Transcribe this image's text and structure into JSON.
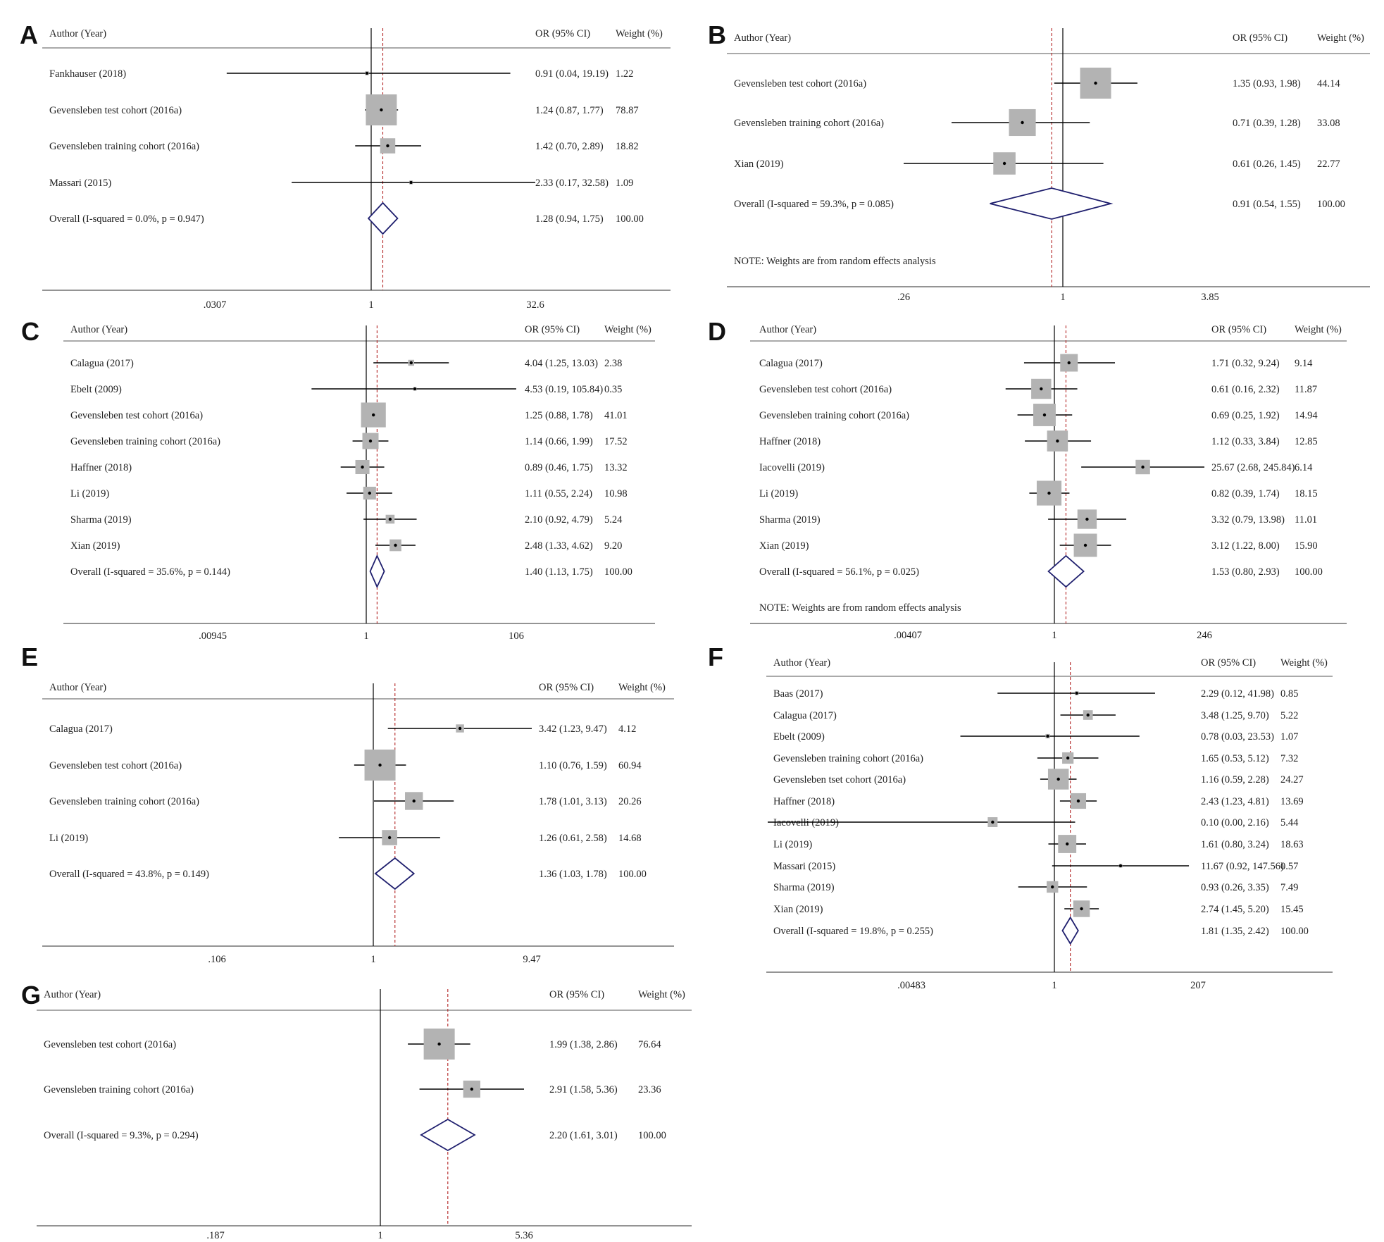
{
  "chart_data": [
    {
      "type": "forest",
      "panel": "A",
      "headers": {
        "label": "Author (Year)",
        "ci": "OR (95% CI)",
        "weight": "Weight (%)"
      },
      "scale": "log",
      "xlim": [
        0.0307,
        32.6
      ],
      "xticks": [
        {
          "value": 0.0307,
          "label": ".0307"
        },
        {
          "value": 1,
          "label": "1"
        },
        {
          "value": 32.6,
          "label": "32.6"
        }
      ],
      "studies": [
        {
          "label": "Fankhauser (2018)",
          "or": 0.91,
          "lo": 0.04,
          "hi": 19.19,
          "weight": 1.22,
          "ci_text": "0.91 (0.04, 19.19)",
          "weight_text": "1.22"
        },
        {
          "label": "Gevensleben test cohort (2016a)",
          "or": 1.24,
          "lo": 0.87,
          "hi": 1.77,
          "weight": 78.87,
          "ci_text": "1.24 (0.87, 1.77)",
          "weight_text": "78.87"
        },
        {
          "label": "Gevensleben training cohort (2016a)",
          "or": 1.42,
          "lo": 0.7,
          "hi": 2.89,
          "weight": 18.82,
          "ci_text": "1.42 (0.70, 2.89)",
          "weight_text": "18.82"
        },
        {
          "label": "Massari (2015)",
          "or": 2.33,
          "lo": 0.17,
          "hi": 32.58,
          "weight": 1.09,
          "ci_text": "2.33 (0.17, 32.58)",
          "weight_text": "1.09"
        }
      ],
      "overall": {
        "label": "Overall  (I-squared = 0.0%, p = 0.947)",
        "or": 1.28,
        "lo": 0.94,
        "hi": 1.75,
        "ci_text": "1.28 (0.94, 1.75)",
        "weight_text": "100.00"
      },
      "note": ""
    },
    {
      "type": "forest",
      "panel": "B",
      "headers": {
        "label": "Author (Year)",
        "ci": "OR (95% CI)",
        "weight": "Weight (%)"
      },
      "scale": "log",
      "xlim": [
        0.26,
        3.85
      ],
      "xticks": [
        {
          "value": 0.26,
          "label": ".26"
        },
        {
          "value": 1,
          "label": "1"
        },
        {
          "value": 3.85,
          "label": "3.85"
        }
      ],
      "studies": [
        {
          "label": "Gevensleben test cohort (2016a)",
          "or": 1.35,
          "lo": 0.93,
          "hi": 1.98,
          "weight": 44.14,
          "ci_text": "1.35 (0.93, 1.98)",
          "weight_text": "44.14"
        },
        {
          "label": "Gevensleben training cohort (2016a)",
          "or": 0.71,
          "lo": 0.39,
          "hi": 1.28,
          "weight": 33.08,
          "ci_text": "0.71 (0.39, 1.28)",
          "weight_text": "33.08"
        },
        {
          "label": "Xian (2019)",
          "or": 0.61,
          "lo": 0.26,
          "hi": 1.45,
          "weight": 22.77,
          "ci_text": "0.61 (0.26, 1.45)",
          "weight_text": "22.77"
        }
      ],
      "overall": {
        "label": "Overall  (I-squared = 59.3%, p = 0.085)",
        "or": 0.91,
        "lo": 0.54,
        "hi": 1.55,
        "ci_text": "0.91 (0.54, 1.55)",
        "weight_text": "100.00"
      },
      "note": "NOTE: Weights are from random effects analysis"
    },
    {
      "type": "forest",
      "panel": "C",
      "headers": {
        "label": "Author (Year)",
        "ci": "OR (95% CI)",
        "weight": "Weight (%)"
      },
      "scale": "log",
      "xlim": [
        0.00945,
        106
      ],
      "xticks": [
        {
          "value": 0.00945,
          "label": ".00945"
        },
        {
          "value": 1,
          "label": "1"
        },
        {
          "value": 106,
          "label": "106"
        }
      ],
      "studies": [
        {
          "label": "Calagua (2017)",
          "or": 4.04,
          "lo": 1.25,
          "hi": 13.03,
          "weight": 2.38,
          "ci_text": "4.04 (1.25, 13.03)",
          "weight_text": "2.38"
        },
        {
          "label": "Ebelt (2009)",
          "or": 4.53,
          "lo": 0.19,
          "hi": 105.84,
          "weight": 0.35,
          "ci_text": "4.53 (0.19, 105.84)",
          "weight_text": "0.35"
        },
        {
          "label": "Gevensleben test cohort (2016a)",
          "or": 1.25,
          "lo": 0.88,
          "hi": 1.78,
          "weight": 41.01,
          "ci_text": "1.25 (0.88, 1.78)",
          "weight_text": "41.01"
        },
        {
          "label": "Gevensleben training cohort (2016a)",
          "or": 1.14,
          "lo": 0.66,
          "hi": 1.99,
          "weight": 17.52,
          "ci_text": "1.14 (0.66, 1.99)",
          "weight_text": "17.52"
        },
        {
          "label": "Haffner (2018)",
          "or": 0.89,
          "lo": 0.46,
          "hi": 1.75,
          "weight": 13.32,
          "ci_text": "0.89 (0.46, 1.75)",
          "weight_text": "13.32"
        },
        {
          "label": "Li (2019)",
          "or": 1.11,
          "lo": 0.55,
          "hi": 2.24,
          "weight": 10.98,
          "ci_text": "1.11 (0.55, 2.24)",
          "weight_text": "10.98"
        },
        {
          "label": "Sharma (2019)",
          "or": 2.1,
          "lo": 0.92,
          "hi": 4.79,
          "weight": 5.24,
          "ci_text": "2.10 (0.92, 4.79)",
          "weight_text": "5.24"
        },
        {
          "label": "Xian (2019)",
          "or": 2.48,
          "lo": 1.33,
          "hi": 4.62,
          "weight": 9.2,
          "ci_text": "2.48 (1.33, 4.62)",
          "weight_text": "9.20"
        }
      ],
      "overall": {
        "label": "Overall  (I-squared = 35.6%, p = 0.144)",
        "or": 1.4,
        "lo": 1.13,
        "hi": 1.75,
        "ci_text": "1.40 (1.13, 1.75)",
        "weight_text": "100.00"
      },
      "note": ""
    },
    {
      "type": "forest",
      "panel": "D",
      "headers": {
        "label": "Author (Year)",
        "ci": "OR (95% CI)",
        "weight": "Weight (%)"
      },
      "scale": "log",
      "xlim": [
        0.00407,
        246
      ],
      "xticks": [
        {
          "value": 0.00407,
          "label": ".00407"
        },
        {
          "value": 1,
          "label": "1"
        },
        {
          "value": 246,
          "label": "246"
        }
      ],
      "studies": [
        {
          "label": "Calagua (2017)",
          "or": 1.71,
          "lo": 0.32,
          "hi": 9.24,
          "weight": 9.14,
          "ci_text": "1.71 (0.32, 9.24)",
          "weight_text": "9.14"
        },
        {
          "label": "Gevensleben test cohort (2016a)",
          "or": 0.61,
          "lo": 0.16,
          "hi": 2.32,
          "weight": 11.87,
          "ci_text": "0.61 (0.16, 2.32)",
          "weight_text": "11.87"
        },
        {
          "label": "Gevensleben training cohort (2016a)",
          "or": 0.69,
          "lo": 0.25,
          "hi": 1.92,
          "weight": 14.94,
          "ci_text": "0.69 (0.25, 1.92)",
          "weight_text": "14.94"
        },
        {
          "label": "Haffner (2018)",
          "or": 1.12,
          "lo": 0.33,
          "hi": 3.84,
          "weight": 12.85,
          "ci_text": "1.12 (0.33, 3.84)",
          "weight_text": "12.85"
        },
        {
          "label": "Iacovelli (2019)",
          "or": 25.67,
          "lo": 2.68,
          "hi": 245.84,
          "weight": 6.14,
          "ci_text": "25.67 (2.68, 245.84)",
          "weight_text": "6.14"
        },
        {
          "label": "Li (2019)",
          "or": 0.82,
          "lo": 0.39,
          "hi": 1.74,
          "weight": 18.15,
          "ci_text": "0.82 (0.39, 1.74)",
          "weight_text": "18.15"
        },
        {
          "label": "Sharma (2019)",
          "or": 3.32,
          "lo": 0.79,
          "hi": 13.98,
          "weight": 11.01,
          "ci_text": "3.32 (0.79, 13.98)",
          "weight_text": "11.01"
        },
        {
          "label": "Xian (2019)",
          "or": 3.12,
          "lo": 1.22,
          "hi": 8.0,
          "weight": 15.9,
          "ci_text": "3.12 (1.22, 8.00)",
          "weight_text": "15.90"
        }
      ],
      "overall": {
        "label": "Overall  (I-squared = 56.1%, p = 0.025)",
        "or": 1.53,
        "lo": 0.8,
        "hi": 2.93,
        "ci_text": "1.53 (0.80, 2.93)",
        "weight_text": "100.00"
      },
      "note": "NOTE: Weights are from random effects analysis"
    },
    {
      "type": "forest",
      "panel": "E",
      "headers": {
        "label": "Author (Year)",
        "ci": "OR (95% CI)",
        "weight": "Weight (%)"
      },
      "scale": "log",
      "xlim": [
        0.106,
        9.47
      ],
      "xticks": [
        {
          "value": 0.106,
          "label": ".106"
        },
        {
          "value": 1,
          "label": "1"
        },
        {
          "value": 9.47,
          "label": "9.47"
        }
      ],
      "studies": [
        {
          "label": "Calagua (2017)",
          "or": 3.42,
          "lo": 1.23,
          "hi": 9.47,
          "weight": 4.12,
          "ci_text": "3.42 (1.23, 9.47)",
          "weight_text": "4.12"
        },
        {
          "label": "Gevensleben test cohort (2016a)",
          "or": 1.1,
          "lo": 0.76,
          "hi": 1.59,
          "weight": 60.94,
          "ci_text": "1.10 (0.76, 1.59)",
          "weight_text": "60.94"
        },
        {
          "label": "Gevensleben training cohort (2016a)",
          "or": 1.78,
          "lo": 1.01,
          "hi": 3.13,
          "weight": 20.26,
          "ci_text": "1.78 (1.01, 3.13)",
          "weight_text": "20.26"
        },
        {
          "label": "Li (2019)",
          "or": 1.26,
          "lo": 0.61,
          "hi": 2.58,
          "weight": 14.68,
          "ci_text": "1.26 (0.61, 2.58)",
          "weight_text": "14.68"
        }
      ],
      "overall": {
        "label": "Overall  (I-squared = 43.8%, p = 0.149)",
        "or": 1.36,
        "lo": 1.03,
        "hi": 1.78,
        "ci_text": "1.36 (1.03, 1.78)",
        "weight_text": "100.00"
      },
      "note": ""
    },
    {
      "type": "forest",
      "panel": "F",
      "headers": {
        "label": "Author (Year)",
        "ci": "OR (95% CI)",
        "weight": "Weight (%)"
      },
      "scale": "log",
      "xlim": [
        0.00483,
        207
      ],
      "xticks": [
        {
          "value": 0.00483,
          "label": ".00483"
        },
        {
          "value": 1,
          "label": "1"
        },
        {
          "value": 207,
          "label": "207"
        }
      ],
      "studies": [
        {
          "label": "Baas (2017)",
          "or": 2.29,
          "lo": 0.12,
          "hi": 41.98,
          "weight": 0.85,
          "ci_text": "2.29 (0.12, 41.98)",
          "weight_text": "0.85"
        },
        {
          "label": "Calagua (2017)",
          "or": 3.48,
          "lo": 1.25,
          "hi": 9.7,
          "weight": 5.22,
          "ci_text": "3.48 (1.25, 9.70)",
          "weight_text": "5.22"
        },
        {
          "label": "Ebelt (2009)",
          "or": 0.78,
          "lo": 0.03,
          "hi": 23.53,
          "weight": 1.07,
          "ci_text": "0.78 (0.03, 23.53)",
          "weight_text": "1.07"
        },
        {
          "label": "Gevensleben training cohort (2016a)",
          "or": 1.65,
          "lo": 0.53,
          "hi": 5.12,
          "weight": 7.32,
          "ci_text": "1.65 (0.53, 5.12)",
          "weight_text": "7.32"
        },
        {
          "label": "Gevensleben tset cohort (2016a)",
          "or": 1.16,
          "lo": 0.59,
          "hi": 2.28,
          "weight": 24.27,
          "ci_text": "1.16 (0.59, 2.28)",
          "weight_text": "24.27"
        },
        {
          "label": "Haffner (2018)",
          "or": 2.43,
          "lo": 1.23,
          "hi": 4.81,
          "weight": 13.69,
          "ci_text": "2.43 (1.23, 4.81)",
          "weight_text": "13.69"
        },
        {
          "label": "Iacovelli (2019)",
          "or": 0.1,
          "lo": 0.0,
          "hi": 2.16,
          "weight": 5.44,
          "ci_text": "0.10 (0.00, 2.16)",
          "weight_text": "5.44"
        },
        {
          "label": "Li (2019)",
          "or": 1.61,
          "lo": 0.8,
          "hi": 3.24,
          "weight": 18.63,
          "ci_text": "1.61 (0.80, 3.24)",
          "weight_text": "18.63"
        },
        {
          "label": "Massari (2015)",
          "or": 11.67,
          "lo": 0.92,
          "hi": 147.56,
          "weight": 0.57,
          "ci_text": "11.67 (0.92, 147.56)",
          "weight_text": "0.57"
        },
        {
          "label": "Sharma (2019)",
          "or": 0.93,
          "lo": 0.26,
          "hi": 3.35,
          "weight": 7.49,
          "ci_text": "0.93 (0.26, 3.35)",
          "weight_text": "7.49"
        },
        {
          "label": "Xian (2019)",
          "or": 2.74,
          "lo": 1.45,
          "hi": 5.2,
          "weight": 15.45,
          "ci_text": "2.74 (1.45, 5.20)",
          "weight_text": "15.45"
        }
      ],
      "overall": {
        "label": "Overall  (I-squared = 19.8%, p = 0.255)",
        "or": 1.81,
        "lo": 1.35,
        "hi": 2.42,
        "ci_text": "1.81 (1.35, 2.42)",
        "weight_text": "100.00"
      },
      "note": ""
    },
    {
      "type": "forest",
      "panel": "G",
      "headers": {
        "label": "Author (Year)",
        "ci": "OR (95% CI)",
        "weight": "Weight (%)"
      },
      "scale": "log",
      "xlim": [
        0.187,
        5.36
      ],
      "xticks": [
        {
          "value": 0.187,
          "label": ".187"
        },
        {
          "value": 1,
          "label": "1"
        },
        {
          "value": 5.36,
          "label": "5.36"
        }
      ],
      "studies": [
        {
          "label": "Gevensleben test cohort (2016a)",
          "or": 1.99,
          "lo": 1.38,
          "hi": 2.86,
          "weight": 76.64,
          "ci_text": "1.99 (1.38, 2.86)",
          "weight_text": "76.64"
        },
        {
          "label": "Gevensleben training cohort (2016a)",
          "or": 2.91,
          "lo": 1.58,
          "hi": 5.36,
          "weight": 23.36,
          "ci_text": "2.91 (1.58, 5.36)",
          "weight_text": "23.36"
        }
      ],
      "overall": {
        "label": "Overall  (I-squared = 9.3%, p = 0.294)",
        "or": 2.2,
        "lo": 1.61,
        "hi": 3.01,
        "ci_text": "2.20 (1.61, 3.01)",
        "weight_text": "100.00"
      },
      "note": ""
    }
  ],
  "colors": {
    "text": "#222222",
    "axis": "#555555",
    "ci_line": "#000000",
    "box_fill": "#b3b3b3",
    "null_line": "#000000",
    "overall_line": "#b22222",
    "diamond": "#1f1f6e"
  }
}
